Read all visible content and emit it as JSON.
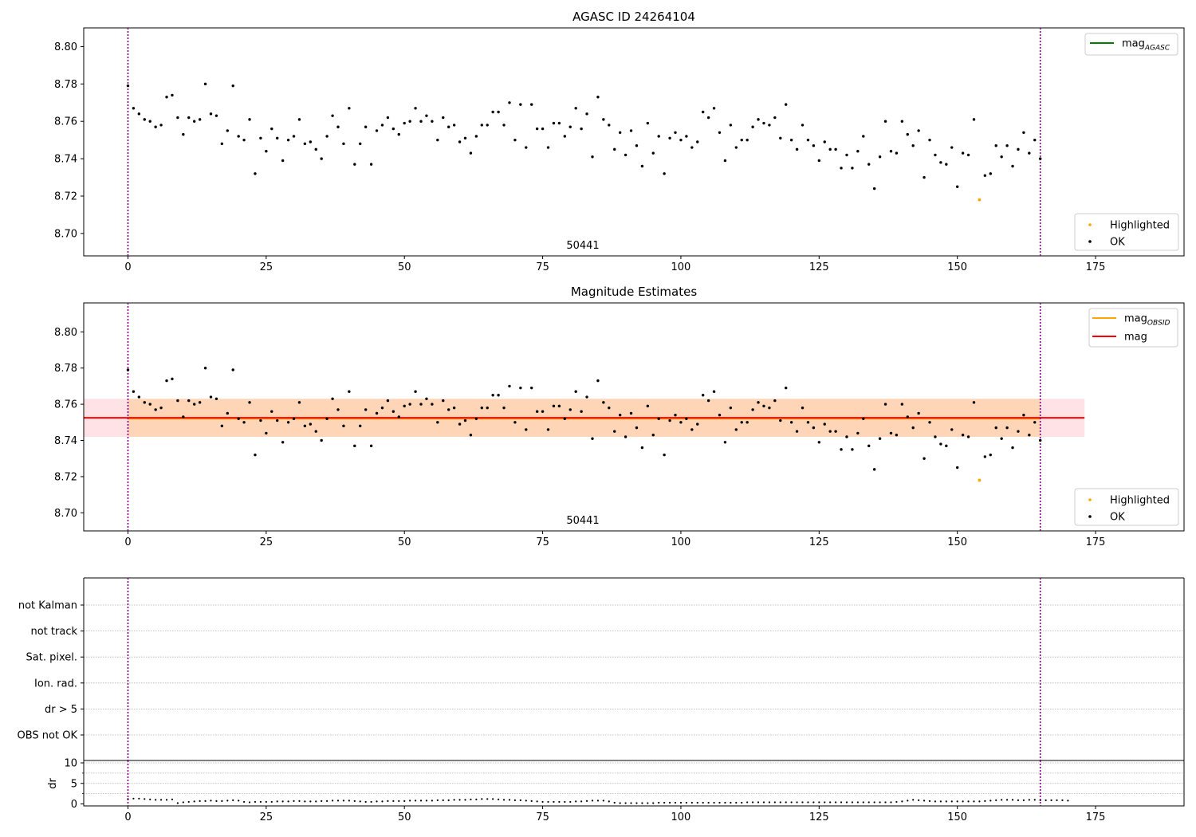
{
  "figure": {
    "top_title": "AGASC ID 24264104",
    "mid_title": "Magnitude Estimates",
    "obsid_label": "50441"
  },
  "chart_data": [
    {
      "type": "scatter",
      "title": "AGASC ID 24264104",
      "xlim": [
        -8,
        191
      ],
      "ylim": [
        8.688,
        8.81
      ],
      "xticks": [
        0,
        25,
        50,
        75,
        100,
        125,
        150,
        175
      ],
      "yticks": [
        8.7,
        8.72,
        8.74,
        8.76,
        8.78,
        8.8
      ],
      "vlines": [
        0,
        165
      ],
      "annotation": "50441",
      "legend_lines": [
        {
          "name": "mag",
          "subscript": "AGASC",
          "color": "#008000"
        }
      ],
      "legend_points": [
        {
          "name": "Highlighted",
          "color": "#ffa500"
        },
        {
          "name": "OK",
          "color": "#000000"
        }
      ],
      "legend_placement": [
        "top-right",
        "bottom-right"
      ],
      "grid": false
    },
    {
      "type": "scatter",
      "title": "Magnitude Estimates",
      "xlim": [
        -8,
        191
      ],
      "ylim": [
        8.69,
        8.816
      ],
      "xticks": [
        0,
        25,
        50,
        75,
        100,
        125,
        150,
        175
      ],
      "yticks": [
        8.7,
        8.72,
        8.74,
        8.76,
        8.78,
        8.8
      ],
      "vlines": [
        0,
        165
      ],
      "annotation": "50441",
      "mag": 8.7525,
      "mag_band": [
        8.742,
        8.763
      ],
      "mag_obsid": 8.752,
      "obsid_band": [
        8.742,
        8.763
      ],
      "legend_lines": [
        {
          "name": "mag",
          "subscript": "OBSID",
          "color": "#ffa500"
        },
        {
          "name": "mag",
          "subscript": "",
          "color": "#ff0000"
        }
      ],
      "legend_points": [
        {
          "name": "Highlighted",
          "color": "#ffa500"
        },
        {
          "name": "OK",
          "color": "#000000"
        }
      ],
      "legend_placement": [
        "top-right",
        "bottom-right"
      ],
      "grid": false
    },
    {
      "type": "scatter",
      "title": "",
      "categories": [
        "not Kalman",
        "not track",
        "Sat. pixel.",
        "Ion. rad.",
        "dr > 5",
        "OBS not OK"
      ],
      "xlim": [
        -8,
        191
      ],
      "vlines": [
        0,
        165
      ],
      "flags": [],
      "grid": true
    },
    {
      "type": "scatter",
      "title": "",
      "ylabel": "dr",
      "xlim": [
        -8,
        191
      ],
      "ylim": [
        -0.5,
        10
      ],
      "yticks": [
        0,
        5,
        10
      ],
      "xticks": [
        0,
        25,
        50,
        75,
        100,
        125,
        150,
        175
      ],
      "vlines": [
        0,
        165
      ],
      "grid": true,
      "dr": [
        1.2,
        1.3,
        1.3,
        1.2,
        1.1,
        1.0,
        1.0,
        1.0,
        1.1,
        0.2,
        0.4,
        0.5,
        0.6,
        0.7,
        0.7,
        0.8,
        0.7,
        0.7,
        0.8,
        0.9,
        0.8,
        0.5,
        0.4,
        0.5,
        0.5,
        0.5,
        0.5,
        0.6,
        0.6,
        0.6,
        0.7,
        0.7,
        0.6,
        0.6,
        0.6,
        0.7,
        0.7,
        0.8,
        0.8,
        0.8,
        0.8,
        0.7,
        0.6,
        0.5,
        0.5,
        0.6,
        0.6,
        0.7,
        0.7,
        0.7,
        0.7,
        0.8,
        0.8,
        0.8,
        0.8,
        0.8,
        0.9,
        0.9,
        0.9,
        1.0,
        1.0,
        1.0,
        1.1,
        1.1,
        1.2,
        1.2,
        1.2,
        1.1,
        1.0,
        1.0,
        0.9,
        0.9,
        0.8,
        0.7,
        0.6,
        0.5,
        0.5,
        0.5,
        0.5,
        0.5,
        0.5,
        0.6,
        0.6,
        0.7,
        0.8,
        0.8,
        0.8,
        0.6,
        0.3,
        0.2,
        0.2,
        0.2,
        0.2,
        0.2,
        0.2,
        0.2,
        0.3,
        0.3,
        0.3,
        0.3,
        0.3,
        0.3,
        0.3,
        0.3,
        0.3,
        0.3,
        0.3,
        0.3,
        0.3,
        0.3,
        0.3,
        0.3,
        0.4,
        0.4,
        0.4,
        0.4,
        0.4,
        0.4,
        0.4,
        0.4,
        0.4,
        0.4,
        0.4,
        0.4,
        0.4,
        0.4,
        0.4,
        0.4,
        0.4,
        0.4,
        0.4,
        0.4,
        0.4,
        0.4,
        0.4,
        0.4,
        0.4,
        0.4,
        0.4,
        0.5,
        0.6,
        0.8,
        1.0,
        0.9,
        0.8,
        0.7,
        0.6,
        0.6,
        0.6,
        0.6,
        0.6,
        0.6,
        0.6,
        0.6,
        0.6,
        0.7,
        0.8,
        0.9,
        1.0,
        1.0,
        1.0,
        0.9,
        0.9,
        1.0,
        1.0,
        0.9,
        0.9,
        0.9,
        0.9,
        0.9,
        0.8
      ]
    }
  ],
  "series_points": {
    "ok": [
      [
        0,
        8.779
      ],
      [
        1,
        8.767
      ],
      [
        2,
        8.764
      ],
      [
        3,
        8.761
      ],
      [
        4,
        8.76
      ],
      [
        5,
        8.757
      ],
      [
        6,
        8.758
      ],
      [
        7,
        8.773
      ],
      [
        8,
        8.774
      ],
      [
        9,
        8.762
      ],
      [
        10,
        8.753
      ],
      [
        11,
        8.762
      ],
      [
        12,
        8.76
      ],
      [
        13,
        8.761
      ],
      [
        14,
        8.78
      ],
      [
        15,
        8.764
      ],
      [
        16,
        8.763
      ],
      [
        17,
        8.748
      ],
      [
        18,
        8.755
      ],
      [
        19,
        8.779
      ],
      [
        20,
        8.752
      ],
      [
        21,
        8.75
      ],
      [
        22,
        8.761
      ],
      [
        23,
        8.732
      ],
      [
        24,
        8.751
      ],
      [
        25,
        8.744
      ],
      [
        26,
        8.756
      ],
      [
        27,
        8.751
      ],
      [
        28,
        8.739
      ],
      [
        29,
        8.75
      ],
      [
        30,
        8.752
      ],
      [
        31,
        8.761
      ],
      [
        32,
        8.748
      ],
      [
        33,
        8.749
      ],
      [
        34,
        8.745
      ],
      [
        35,
        8.74
      ],
      [
        36,
        8.752
      ],
      [
        37,
        8.763
      ],
      [
        38,
        8.757
      ],
      [
        39,
        8.748
      ],
      [
        40,
        8.767
      ],
      [
        41,
        8.737
      ],
      [
        42,
        8.748
      ],
      [
        43,
        8.757
      ],
      [
        44,
        8.737
      ],
      [
        45,
        8.755
      ],
      [
        46,
        8.758
      ],
      [
        47,
        8.762
      ],
      [
        48,
        8.756
      ],
      [
        49,
        8.753
      ],
      [
        50,
        8.759
      ],
      [
        51,
        8.76
      ],
      [
        52,
        8.767
      ],
      [
        53,
        8.76
      ],
      [
        54,
        8.763
      ],
      [
        55,
        8.76
      ],
      [
        56,
        8.75
      ],
      [
        57,
        8.762
      ],
      [
        58,
        8.757
      ],
      [
        59,
        8.758
      ],
      [
        60,
        8.749
      ],
      [
        61,
        8.751
      ],
      [
        62,
        8.743
      ],
      [
        63,
        8.752
      ],
      [
        64,
        8.758
      ],
      [
        65,
        8.758
      ],
      [
        66,
        8.765
      ],
      [
        67,
        8.765
      ],
      [
        68,
        8.758
      ],
      [
        69,
        8.77
      ],
      [
        70,
        8.75
      ],
      [
        71,
        8.769
      ],
      [
        72,
        8.746
      ],
      [
        73,
        8.769
      ],
      [
        74,
        8.756
      ],
      [
        75,
        8.756
      ],
      [
        76,
        8.746
      ],
      [
        77,
        8.759
      ],
      [
        78,
        8.759
      ],
      [
        79,
        8.752
      ],
      [
        80,
        8.757
      ],
      [
        81,
        8.767
      ],
      [
        82,
        8.756
      ],
      [
        83,
        8.764
      ],
      [
        84,
        8.741
      ],
      [
        85,
        8.773
      ],
      [
        86,
        8.761
      ],
      [
        87,
        8.758
      ],
      [
        88,
        8.745
      ],
      [
        89,
        8.754
      ],
      [
        90,
        8.742
      ],
      [
        91,
        8.755
      ],
      [
        92,
        8.747
      ],
      [
        93,
        8.736
      ],
      [
        94,
        8.759
      ],
      [
        95,
        8.743
      ],
      [
        96,
        8.752
      ],
      [
        97,
        8.732
      ],
      [
        98,
        8.751
      ],
      [
        99,
        8.754
      ],
      [
        100,
        8.75
      ],
      [
        101,
        8.752
      ],
      [
        102,
        8.746
      ],
      [
        103,
        8.749
      ],
      [
        104,
        8.765
      ],
      [
        105,
        8.762
      ],
      [
        106,
        8.767
      ],
      [
        107,
        8.754
      ],
      [
        108,
        8.739
      ],
      [
        109,
        8.758
      ],
      [
        110,
        8.746
      ],
      [
        111,
        8.75
      ],
      [
        112,
        8.75
      ],
      [
        113,
        8.757
      ],
      [
        114,
        8.761
      ],
      [
        115,
        8.759
      ],
      [
        116,
        8.758
      ],
      [
        117,
        8.762
      ],
      [
        118,
        8.751
      ],
      [
        119,
        8.769
      ],
      [
        120,
        8.75
      ],
      [
        121,
        8.745
      ],
      [
        122,
        8.758
      ],
      [
        123,
        8.75
      ],
      [
        124,
        8.747
      ],
      [
        125,
        8.739
      ],
      [
        126,
        8.749
      ],
      [
        127,
        8.745
      ],
      [
        128,
        8.745
      ],
      [
        129,
        8.735
      ],
      [
        130,
        8.742
      ],
      [
        131,
        8.735
      ],
      [
        132,
        8.744
      ],
      [
        133,
        8.752
      ],
      [
        134,
        8.737
      ],
      [
        135,
        8.724
      ],
      [
        136,
        8.741
      ],
      [
        137,
        8.76
      ],
      [
        138,
        8.744
      ],
      [
        139,
        8.743
      ],
      [
        140,
        8.76
      ],
      [
        141,
        8.753
      ],
      [
        142,
        8.747
      ],
      [
        143,
        8.755
      ],
      [
        144,
        8.73
      ],
      [
        145,
        8.75
      ],
      [
        146,
        8.742
      ],
      [
        147,
        8.738
      ],
      [
        148,
        8.737
      ],
      [
        149,
        8.746
      ],
      [
        150,
        8.725
      ],
      [
        151,
        8.743
      ],
      [
        152,
        8.742
      ],
      [
        153,
        8.761
      ],
      [
        155,
        8.731
      ],
      [
        156,
        8.732
      ],
      [
        157,
        8.747
      ],
      [
        158,
        8.741
      ],
      [
        159,
        8.747
      ],
      [
        160,
        8.736
      ],
      [
        161,
        8.745
      ],
      [
        162,
        8.754
      ],
      [
        163,
        8.743
      ],
      [
        164,
        8.75
      ],
      [
        165,
        8.74
      ]
    ],
    "highlighted": [
      [
        154,
        8.718
      ]
    ]
  }
}
